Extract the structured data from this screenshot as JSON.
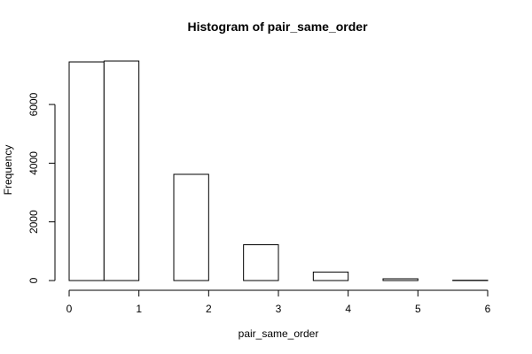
{
  "chart_data": {
    "type": "bar",
    "title": "Histogram of pair_same_order",
    "xlabel": "pair_same_order",
    "ylabel": "Frequency",
    "bins": [
      [
        0.0,
        0.5
      ],
      [
        0.5,
        1.0
      ],
      [
        1.0,
        1.5
      ],
      [
        1.5,
        2.0
      ],
      [
        2.0,
        2.5
      ],
      [
        2.5,
        3.0
      ],
      [
        3.0,
        3.5
      ],
      [
        3.5,
        4.0
      ],
      [
        4.0,
        4.5
      ],
      [
        4.5,
        5.0
      ],
      [
        5.0,
        5.5
      ],
      [
        5.5,
        6.0
      ]
    ],
    "values": [
      7450,
      7480,
      0,
      3620,
      0,
      1220,
      0,
      290,
      0,
      60,
      0,
      10
    ],
    "xlim": [
      0,
      6
    ],
    "ylim": [
      0,
      7480
    ],
    "xticks": [
      0,
      1,
      2,
      3,
      4,
      5,
      6
    ],
    "xtick_labels": [
      "0",
      "1",
      "2",
      "3",
      "4",
      "5",
      "6"
    ],
    "yticks": [
      0,
      2000,
      4000,
      6000
    ],
    "ytick_labels": [
      "0",
      "2000",
      "4000",
      "6000"
    ],
    "colors": {
      "bar_fill": "#ffffff",
      "bar_stroke": "#000000"
    },
    "grid": false,
    "legend": "none"
  }
}
